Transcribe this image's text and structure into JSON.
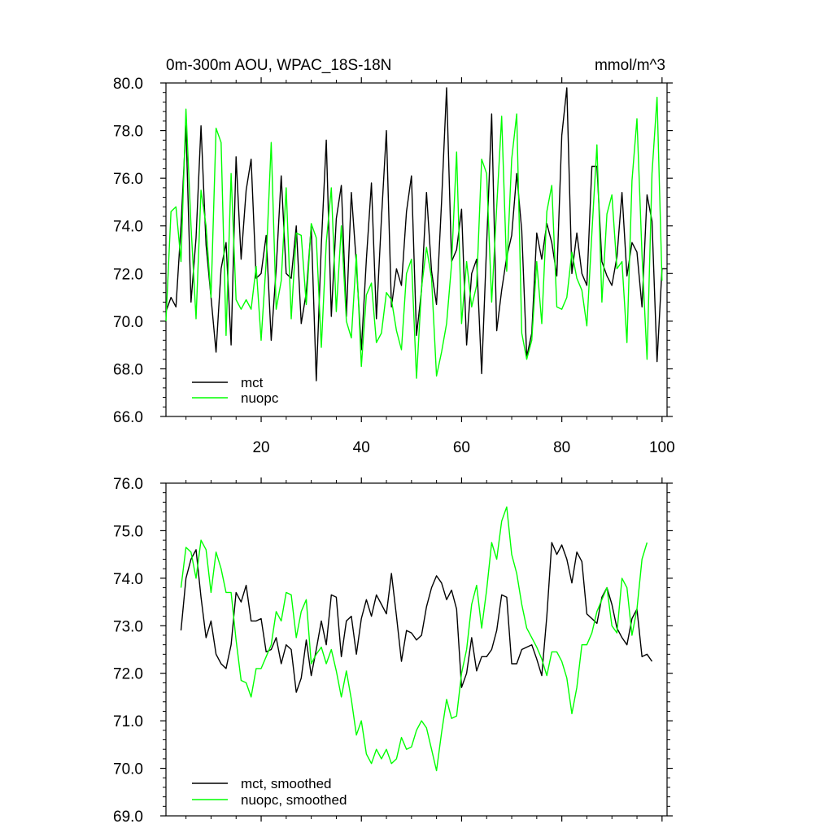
{
  "chart_data": [
    {
      "type": "line",
      "title": "0m-300m AOU, WPAC_18S-18N",
      "units": "mmol/m^3",
      "xlabel": "",
      "ylabel": "",
      "xlim": [
        1,
        101
      ],
      "ylim": [
        66.0,
        80.0
      ],
      "x_ticks": [
        20,
        40,
        60,
        80,
        100
      ],
      "y_ticks": [
        "66.0",
        "68.0",
        "70.0",
        "72.0",
        "74.0",
        "76.0",
        "78.0",
        "80.0"
      ],
      "legend_position": "bottom-left",
      "grid": false,
      "series": [
        {
          "name": "mct",
          "color": "#000000",
          "x_start": 1,
          "values": [
            70.4,
            71.0,
            70.6,
            74.0,
            78.2,
            70.8,
            73.5,
            78.2,
            73.2,
            71.0,
            68.7,
            72.2,
            73.3,
            69.0,
            76.9,
            72.6,
            75.5,
            76.8,
            71.8,
            72.0,
            73.6,
            69.2,
            72.2,
            76.1,
            72.0,
            71.8,
            74.0,
            69.9,
            71.2,
            74.0,
            67.5,
            73.2,
            77.6,
            70.2,
            74.3,
            75.7,
            70.2,
            75.4,
            72.4,
            68.8,
            72.6,
            75.8,
            70.1,
            74.3,
            78.0,
            70.6,
            72.2,
            71.5,
            74.6,
            76.1,
            69.4,
            71.3,
            75.4,
            72.1,
            70.7,
            75.0,
            79.8,
            72.5,
            73.0,
            74.7,
            69.0,
            72.0,
            72.6,
            67.8,
            73.2,
            78.7,
            69.6,
            71.3,
            72.7,
            73.6,
            76.2,
            73.8,
            68.5,
            69.5,
            73.7,
            72.6,
            74.1,
            73.3,
            71.9,
            77.8,
            79.8,
            72.0,
            73.7,
            72.0,
            71.5,
            76.5,
            76.5,
            72.5,
            71.9,
            71.5,
            72.7,
            75.4,
            71.9,
            73.3,
            72.9,
            70.6,
            75.3,
            74.2,
            68.3,
            72.2,
            72.2
          ]
        },
        {
          "name": "nuopc",
          "color": "#00ff00",
          "x_start": 1,
          "values": [
            70.0,
            74.6,
            74.8,
            72.5,
            78.9,
            74.0,
            70.1,
            75.5,
            74.0,
            71.0,
            78.1,
            77.5,
            69.4,
            76.2,
            70.9,
            70.5,
            70.9,
            70.5,
            72.3,
            69.2,
            72.5,
            77.5,
            70.5,
            71.7,
            75.6,
            70.1,
            73.7,
            73.6,
            70.7,
            74.1,
            73.5,
            68.9,
            73.3,
            75.6,
            70.4,
            74.0,
            70.0,
            69.3,
            72.8,
            68.1,
            71.1,
            71.6,
            69.1,
            69.5,
            71.2,
            70.9,
            69.6,
            68.8,
            72.0,
            72.6,
            67.6,
            71.4,
            73.1,
            71.8,
            67.7,
            68.7,
            69.9,
            72.4,
            77.1,
            69.9,
            72.5,
            70.6,
            71.5,
            76.8,
            76.2,
            70.8,
            74.8,
            78.6,
            72.1,
            76.8,
            78.7,
            69.5,
            68.4,
            69.2,
            72.5,
            69.9,
            74.6,
            75.7,
            70.6,
            70.5,
            71.0,
            72.9,
            71.8,
            71.3,
            69.8,
            73.7,
            77.4,
            70.8,
            74.5,
            75.3,
            72.2,
            72.5,
            69.1,
            75.9,
            78.5,
            72.8,
            68.4,
            76.2,
            79.4,
            71.7
          ]
        }
      ]
    },
    {
      "type": "line",
      "title": "",
      "xlabel": "",
      "ylabel": "",
      "xlim": [
        1,
        101
      ],
      "ylim": [
        69.0,
        76.0
      ],
      "x_ticks": [
        20,
        40,
        60,
        80,
        100
      ],
      "y_ticks": [
        "69.0",
        "70.0",
        "71.0",
        "72.0",
        "73.0",
        "74.0",
        "75.0",
        "76.0"
      ],
      "legend_position": "bottom-left",
      "grid": false,
      "series": [
        {
          "name": "mct, smoothed",
          "color": "#000000",
          "x_start": 4,
          "values": [
            72.9,
            74.0,
            74.4,
            74.6,
            73.6,
            72.75,
            73.1,
            72.4,
            72.2,
            72.1,
            72.6,
            73.7,
            73.5,
            73.85,
            73.1,
            73.1,
            73.15,
            72.45,
            72.5,
            72.75,
            72.2,
            72.6,
            72.5,
            71.6,
            71.9,
            72.7,
            71.95,
            72.5,
            73.1,
            72.6,
            73.65,
            73.6,
            72.35,
            73.1,
            73.2,
            72.4,
            73.15,
            73.55,
            73.2,
            73.65,
            73.45,
            73.25,
            74.1,
            73.2,
            72.25,
            72.9,
            72.85,
            72.7,
            72.8,
            73.4,
            73.8,
            74.05,
            73.9,
            73.55,
            73.75,
            73.35,
            71.7,
            72.0,
            72.75,
            72.05,
            72.35,
            72.35,
            72.5,
            72.9,
            73.65,
            73.6,
            72.2,
            72.2,
            72.5,
            72.55,
            72.6,
            72.3,
            71.95,
            73.2,
            74.75,
            74.5,
            74.7,
            74.4,
            73.9,
            74.55,
            74.35,
            73.25,
            73.15,
            73.05,
            73.6,
            73.8,
            73.45,
            72.95,
            72.75,
            72.6,
            73.15,
            73.35,
            72.35,
            72.4,
            72.25
          ]
        },
        {
          "name": "nuopc, smoothed",
          "color": "#00ff00",
          "x_start": 4,
          "values": [
            73.8,
            74.65,
            74.55,
            74.0,
            74.8,
            74.6,
            73.7,
            74.55,
            74.2,
            73.7,
            73.7,
            72.7,
            71.85,
            71.8,
            71.5,
            72.1,
            72.1,
            72.35,
            72.6,
            73.3,
            73.1,
            73.7,
            73.65,
            72.75,
            73.3,
            73.55,
            72.2,
            72.4,
            72.55,
            72.2,
            72.5,
            72.05,
            71.5,
            72.05,
            71.45,
            70.7,
            71.0,
            70.3,
            70.1,
            70.4,
            70.2,
            70.4,
            70.1,
            70.2,
            70.65,
            70.4,
            70.45,
            70.8,
            71.0,
            70.85,
            70.4,
            69.95,
            70.75,
            71.45,
            71.05,
            71.1,
            72.0,
            72.5,
            73.45,
            73.85,
            72.95,
            73.75,
            74.75,
            74.4,
            75.2,
            75.5,
            74.5,
            74.1,
            73.45,
            72.95,
            72.75,
            72.55,
            72.3,
            71.95,
            72.45,
            72.45,
            72.25,
            71.9,
            71.15,
            71.7,
            72.6,
            72.6,
            72.85,
            73.3,
            73.55,
            73.8,
            73.0,
            72.85,
            74.0,
            73.8,
            72.8,
            73.35,
            74.4,
            74.75
          ]
        }
      ]
    }
  ]
}
